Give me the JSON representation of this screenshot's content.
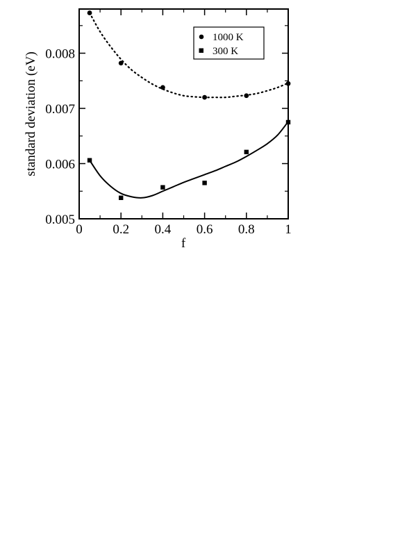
{
  "chart_data": {
    "type": "scatter",
    "xlabel": "f",
    "ylabel": "standard deviation (eV)",
    "xlim": [
      0,
      1
    ],
    "ylim": [
      0.005,
      0.0088
    ],
    "xticks": [
      0,
      0.2,
      0.4,
      0.6,
      0.8,
      1
    ],
    "xtick_labels": [
      "0",
      "0.2",
      "0.4",
      "0.6",
      "0.8",
      "1"
    ],
    "yticks": [
      0.005,
      0.006,
      0.007,
      0.008
    ],
    "ytick_labels": [
      "0.005",
      "0.006",
      "0.007",
      "0.008"
    ],
    "grid": false,
    "legend_position": "top-right",
    "series": [
      {
        "name": "1000 K",
        "marker": "circle",
        "fit_line_style": "dotted",
        "x": [
          0.05,
          0.2,
          0.4,
          0.6,
          0.8,
          1.0
        ],
        "y": [
          0.00873,
          0.00782,
          0.00738,
          0.0072,
          0.00723,
          0.00745
        ],
        "fit_x": [
          0.05,
          0.1,
          0.15,
          0.2,
          0.25,
          0.3,
          0.35,
          0.4,
          0.45,
          0.5,
          0.55,
          0.6,
          0.65,
          0.7,
          0.75,
          0.8,
          0.85,
          0.9,
          0.95,
          1.0
        ],
        "fit_y": [
          0.00873,
          0.00839,
          0.00812,
          0.00789,
          0.0077,
          0.00756,
          0.00744,
          0.00735,
          0.00728,
          0.00723,
          0.00721,
          0.0072,
          0.0072,
          0.0072,
          0.00722,
          0.00724,
          0.00727,
          0.00732,
          0.00738,
          0.00746
        ]
      },
      {
        "name": "300 K",
        "marker": "square",
        "fit_line_style": "solid",
        "x": [
          0.05,
          0.2,
          0.4,
          0.6,
          0.8,
          1.0
        ],
        "y": [
          0.00606,
          0.00538,
          0.00557,
          0.00565,
          0.00621,
          0.00675
        ],
        "fit_x": [
          0.05,
          0.1,
          0.15,
          0.2,
          0.25,
          0.3,
          0.35,
          0.4,
          0.45,
          0.5,
          0.55,
          0.6,
          0.65,
          0.7,
          0.75,
          0.8,
          0.85,
          0.9,
          0.95,
          1.0
        ],
        "fit_y": [
          0.00606,
          0.00578,
          0.00559,
          0.00546,
          0.0054,
          0.00538,
          0.00542,
          0.0055,
          0.00558,
          0.00566,
          0.00573,
          0.0058,
          0.00587,
          0.00595,
          0.00603,
          0.00613,
          0.00624,
          0.00636,
          0.00652,
          0.00676
        ]
      }
    ]
  },
  "colors": {
    "ink": "#000000",
    "background": "#ffffff"
  }
}
